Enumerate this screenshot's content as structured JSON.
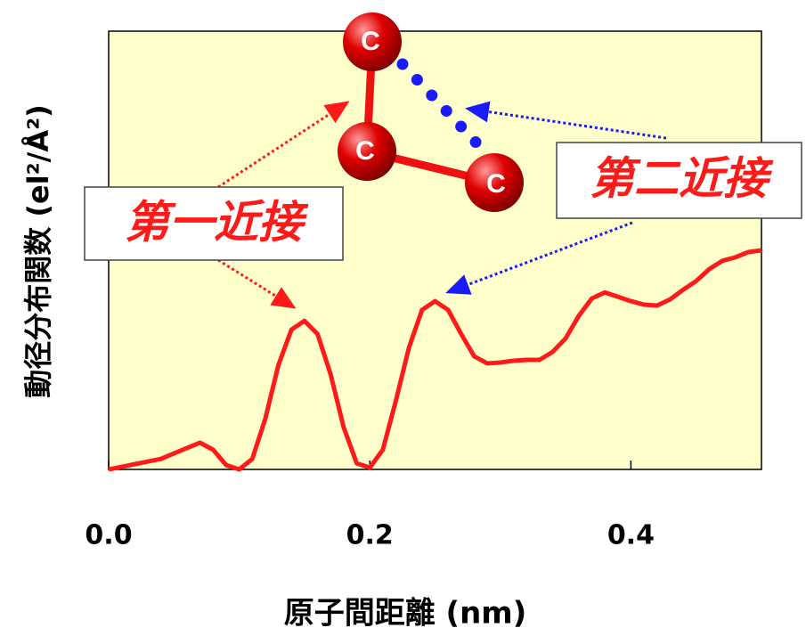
{
  "chart_data": {
    "type": "line",
    "x_label": "原子間距離 (nm)",
    "y_label": "動径分布関数 (el²/Å²)",
    "x": [
      0,
      0.02,
      0.04,
      0.06,
      0.07,
      0.08,
      0.09,
      0.1,
      0.11,
      0.12,
      0.13,
      0.14,
      0.15,
      0.16,
      0.17,
      0.18,
      0.19,
      0.2,
      0.21,
      0.22,
      0.23,
      0.24,
      0.25,
      0.26,
      0.27,
      0.28,
      0.29,
      0.3,
      0.31,
      0.32,
      0.33,
      0.34,
      0.35,
      0.36,
      0.37,
      0.38,
      0.39,
      0.4,
      0.41,
      0.42,
      0.43,
      0.44,
      0.45,
      0.46,
      0.47,
      0.48,
      0.49,
      0.5
    ],
    "values": [
      0,
      0.012,
      0.024,
      0.049,
      0.061,
      0.045,
      0.01,
      0,
      0.024,
      0.116,
      0.238,
      0.319,
      0.339,
      0.309,
      0.217,
      0.096,
      0.014,
      0.004,
      0.045,
      0.157,
      0.278,
      0.364,
      0.384,
      0.364,
      0.309,
      0.258,
      0.242,
      0.244,
      0.248,
      0.25,
      0.25,
      0.268,
      0.299,
      0.35,
      0.39,
      0.404,
      0.394,
      0.384,
      0.376,
      0.374,
      0.388,
      0.41,
      0.43,
      0.457,
      0.476,
      0.484,
      0.496,
      0.5
    ],
    "color": "#ff1a1a",
    "xlim": [
      0,
      0.5
    ],
    "xticks": [
      {
        "value": 0,
        "label": "0.0"
      },
      0.2,
      0.4
    ],
    "ylim": [
      0,
      1
    ],
    "annotations": [
      "第一近接",
      "第二近接"
    ],
    "atom_labels": [
      "C",
      "C",
      "C"
    ]
  }
}
